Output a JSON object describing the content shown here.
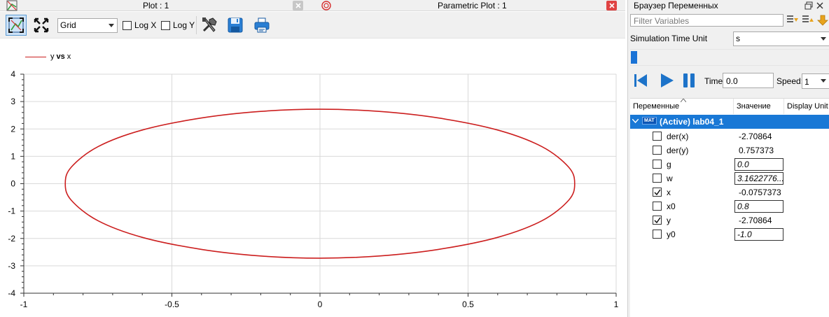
{
  "plot_window": {
    "tabs": [
      {
        "title": "Plot : 1"
      },
      {
        "title": "Parametric Plot : 1"
      }
    ],
    "toolbar": {
      "grid_select": "Grid",
      "log_x_label": "Log X",
      "log_y_label": "Log Y",
      "log_x_checked": false,
      "log_y_checked": false,
      "icons": [
        "fit-in-view-icon",
        "zoom-icon",
        "setup-tools-icon",
        "save-icon",
        "print-icon"
      ]
    },
    "legend": {
      "prefix": "y",
      "mid": "vs",
      "suffix": "x"
    },
    "colors": {
      "curve": "#cc1f1f",
      "grid": "#d9d9d9",
      "accent": "#1978d6"
    }
  },
  "chart_data": {
    "type": "line",
    "title": "",
    "xlabel": "",
    "ylabel": "",
    "xlim": [
      -1,
      1
    ],
    "ylim": [
      -4,
      4
    ],
    "xticks": [
      -1,
      -0.5,
      0,
      0.5,
      1
    ],
    "xtick_labels": [
      "-1",
      "-0.5",
      "0",
      "0.5",
      "1"
    ],
    "yticks": [
      4,
      3,
      2,
      1,
      0,
      -1,
      -2,
      -3,
      -4
    ],
    "ytick_labels": [
      "4",
      "3",
      "2",
      "1",
      "0",
      "-1",
      "-2",
      "-3",
      "-4"
    ],
    "grid": true,
    "legend_position": "top-left",
    "series": [
      {
        "name": "y vs x",
        "color": "#cc1f1f",
        "x": [
          0.0,
          0.2,
          0.4,
          0.6,
          0.75,
          0.84,
          0.86,
          0.84,
          0.75,
          0.6,
          0.4,
          0.2,
          0.0,
          -0.2,
          -0.4,
          -0.6,
          -0.75,
          -0.84,
          -0.86,
          -0.84,
          -0.75,
          -0.6,
          -0.4,
          -0.2,
          0.0
        ],
        "y": [
          2.72,
          2.64,
          2.4,
          1.96,
          1.35,
          0.6,
          0.0,
          -0.6,
          -1.35,
          -1.96,
          -2.4,
          -2.64,
          -2.72,
          -2.64,
          -2.4,
          -1.96,
          -1.35,
          -0.6,
          0.0,
          0.6,
          1.35,
          1.96,
          2.4,
          2.64,
          2.72
        ]
      }
    ]
  },
  "browser": {
    "title": "Браузер Переменных",
    "filter_placeholder": "Filter Variables",
    "sim_time_unit_label": "Simulation Time Unit",
    "sim_time_unit_value": "s",
    "time_label": "Time:",
    "time_value": "0.0",
    "speed_label": "Speed:",
    "speed_value": "1",
    "columns": [
      "Переменные",
      "Значение",
      "Display Unit"
    ],
    "model": "(Active) lab04_1",
    "model_badge": "MAT",
    "variables": [
      {
        "name": "der(x)",
        "value": "-2.70864",
        "checked": false,
        "editable": false
      },
      {
        "name": "der(y)",
        "value": "0.757373",
        "checked": false,
        "editable": false
      },
      {
        "name": "g",
        "value": "0.0",
        "checked": false,
        "editable": true
      },
      {
        "name": "w",
        "value": "3.1622776...",
        "checked": false,
        "editable": true
      },
      {
        "name": "x",
        "value": "-0.0757373",
        "checked": true,
        "editable": false
      },
      {
        "name": "x0",
        "value": "0.8",
        "checked": false,
        "editable": true
      },
      {
        "name": "y",
        "value": "-2.70864",
        "checked": true,
        "editable": false
      },
      {
        "name": "y0",
        "value": "-1.0",
        "checked": false,
        "editable": true
      }
    ]
  }
}
